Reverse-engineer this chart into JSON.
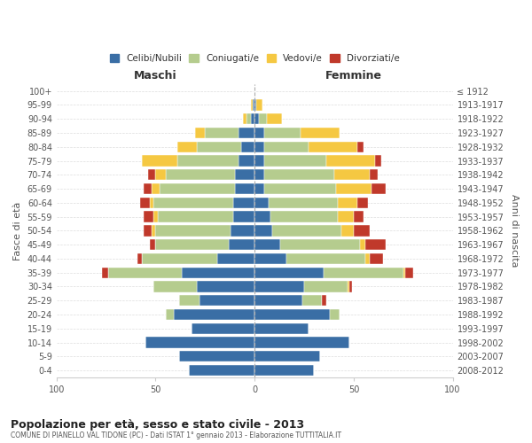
{
  "age_groups": [
    "0-4",
    "5-9",
    "10-14",
    "15-19",
    "20-24",
    "25-29",
    "30-34",
    "35-39",
    "40-44",
    "45-49",
    "50-54",
    "55-59",
    "60-64",
    "65-69",
    "70-74",
    "75-79",
    "80-84",
    "85-89",
    "90-94",
    "95-99",
    "100+"
  ],
  "birth_years": [
    "2008-2012",
    "2003-2007",
    "1998-2002",
    "1993-1997",
    "1988-1992",
    "1983-1987",
    "1978-1982",
    "1973-1977",
    "1968-1972",
    "1963-1967",
    "1958-1962",
    "1953-1957",
    "1948-1952",
    "1943-1947",
    "1938-1942",
    "1933-1937",
    "1928-1932",
    "1923-1927",
    "1918-1922",
    "1913-1917",
    "≤ 1912"
  ],
  "maschi": {
    "celibi": [
      33,
      38,
      55,
      32,
      41,
      28,
      29,
      37,
      19,
      13,
      12,
      11,
      11,
      10,
      10,
      8,
      7,
      8,
      2,
      1,
      0
    ],
    "coniugati": [
      0,
      0,
      0,
      0,
      4,
      10,
      22,
      37,
      38,
      37,
      38,
      38,
      40,
      38,
      35,
      31,
      22,
      17,
      2,
      0,
      0
    ],
    "vedovi": [
      0,
      0,
      0,
      0,
      0,
      0,
      0,
      0,
      0,
      0,
      2,
      2,
      2,
      4,
      5,
      18,
      10,
      5,
      2,
      1,
      0
    ],
    "divorziati": [
      0,
      0,
      0,
      0,
      0,
      0,
      0,
      3,
      2,
      3,
      4,
      5,
      5,
      4,
      4,
      0,
      0,
      0,
      0,
      0,
      0
    ]
  },
  "femmine": {
    "nubili": [
      30,
      33,
      48,
      27,
      38,
      24,
      25,
      35,
      16,
      13,
      9,
      8,
      7,
      5,
      5,
      5,
      5,
      5,
      2,
      1,
      0
    ],
    "coniugate": [
      0,
      0,
      0,
      0,
      5,
      10,
      22,
      40,
      40,
      40,
      35,
      34,
      35,
      36,
      35,
      31,
      22,
      18,
      4,
      0,
      0
    ],
    "vedove": [
      0,
      0,
      0,
      0,
      0,
      0,
      1,
      1,
      2,
      3,
      6,
      8,
      10,
      18,
      18,
      25,
      25,
      20,
      8,
      3,
      0
    ],
    "divorziate": [
      0,
      0,
      0,
      0,
      0,
      2,
      1,
      4,
      7,
      10,
      8,
      5,
      5,
      7,
      4,
      3,
      3,
      0,
      0,
      0,
      0
    ]
  },
  "colors": {
    "celibi": "#3a6ea5",
    "coniugati": "#b5cc8e",
    "vedovi": "#f5c842",
    "divorziati": "#c0392b"
  },
  "xlim": [
    -100,
    100
  ],
  "xlabel_maschi": "Maschi",
  "xlabel_femmine": "Femmine",
  "ylabel_left": "Fasce di età",
  "ylabel_right": "Anni di nascita",
  "title": "Popolazione per età, sesso e stato civile - 2013",
  "subtitle": "COMUNE DI PIANELLO VAL TIDONE (PC) - Dati ISTAT 1° gennaio 2013 - Elaborazione TUTTITALIA.IT",
  "legend_labels": [
    "Celibi/Nubili",
    "Coniugati/e",
    "Vedovi/e",
    "Divorziati/e"
  ],
  "xticks": [
    -100,
    -50,
    0,
    50,
    100
  ],
  "xtick_labels": [
    "100",
    "50",
    "0",
    "50",
    "100"
  ],
  "background_color": "#ffffff",
  "grid_color": "#cccccc"
}
